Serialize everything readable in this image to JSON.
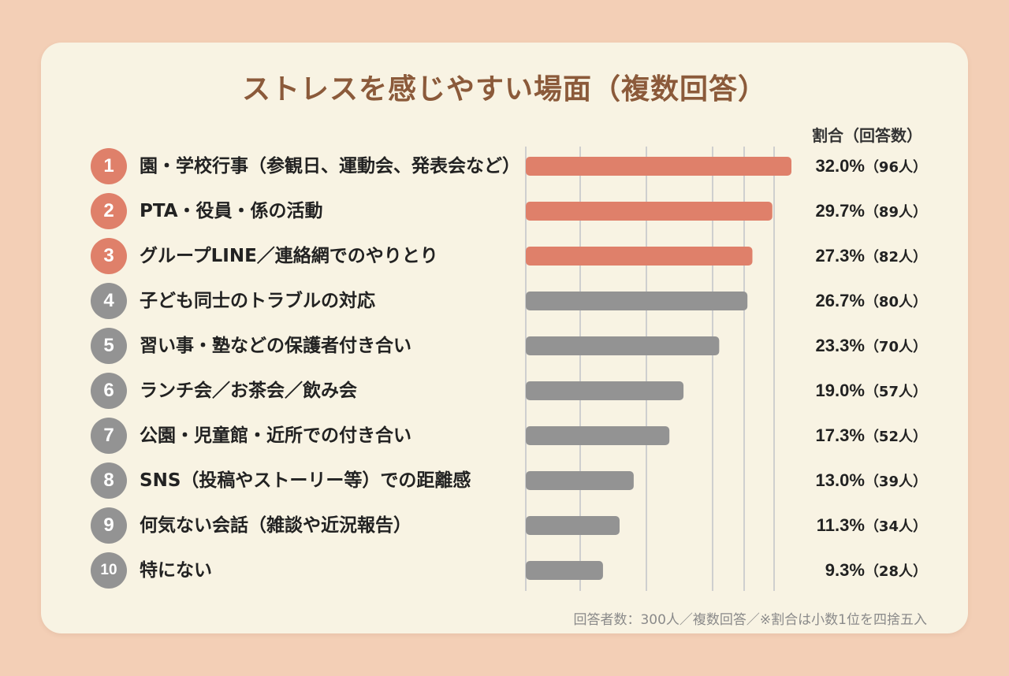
{
  "chart_data": {
    "type": "bar",
    "orientation": "horizontal",
    "title": "ストレスを感じやすい場面（複数回答）",
    "value_header": "割合（回答数）",
    "categories": [
      "園・学校行事（参観日、運動会、発表会など）",
      "PTA・役員・係の活動",
      "グループLINE／連絡網でのやりとり",
      "子ども同士のトラブルの対応",
      "習い事・塾などの保護者付き合い",
      "ランチ会／お茶会／飲み会",
      "公園・児童館・近所での付き合い",
      "SNS（投稿やストーリー等）での距離感",
      "何気ない会話（雑談や近況報告）",
      "特にない"
    ],
    "ranks": [
      "1",
      "2",
      "3",
      "4",
      "5",
      "6",
      "7",
      "8",
      "9",
      "10"
    ],
    "values": [
      32.0,
      29.7,
      27.3,
      26.7,
      23.3,
      19.0,
      17.3,
      13.0,
      11.3,
      9.3
    ],
    "value_labels": [
      "32.0%",
      "29.7%",
      "27.3%",
      "26.7%",
      "23.3%",
      "19.0%",
      "17.3%",
      "13.0%",
      "11.3%",
      "9.3%"
    ],
    "counts": [
      "（96人）",
      "（89人）",
      "（82人）",
      "（80人）",
      "（70人）",
      "（57人）",
      "（52人）",
      "（39人）",
      "（34人）",
      "（28人）"
    ],
    "highlight_top_n": 3,
    "xlim": [
      0,
      32
    ],
    "grid": true,
    "colors": {
      "highlight": "#df806a",
      "normal": "#939393",
      "grid": "#cfcfcf"
    },
    "footnote": "回答者数：300人／複数回答／※割合は小数1位を四捨五入"
  }
}
